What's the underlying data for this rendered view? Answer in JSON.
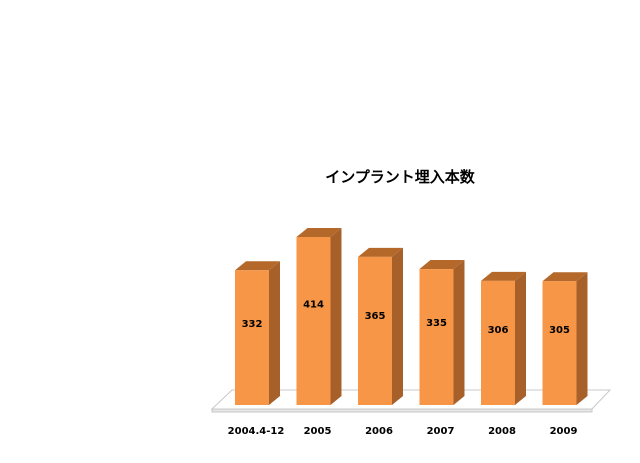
{
  "chart_data": {
    "type": "bar",
    "title": "インプラント埋入本数",
    "categories": [
      "2004.4-12",
      "2005",
      "2006",
      "2007",
      "2008",
      "2009"
    ],
    "values": [
      332,
      414,
      365,
      335,
      306,
      305
    ],
    "xlabel": "",
    "ylabel": "",
    "ylim": [
      0,
      414
    ],
    "grid": false,
    "legend": "none",
    "style": "3d-column",
    "data_labels": true
  },
  "colors": {
    "bar_front": "#F79646",
    "bar_top": "#B4692A",
    "bar_side": "#A8602A",
    "floor": "#FFFFFF",
    "floor_stroke": "#C8C8C8"
  }
}
